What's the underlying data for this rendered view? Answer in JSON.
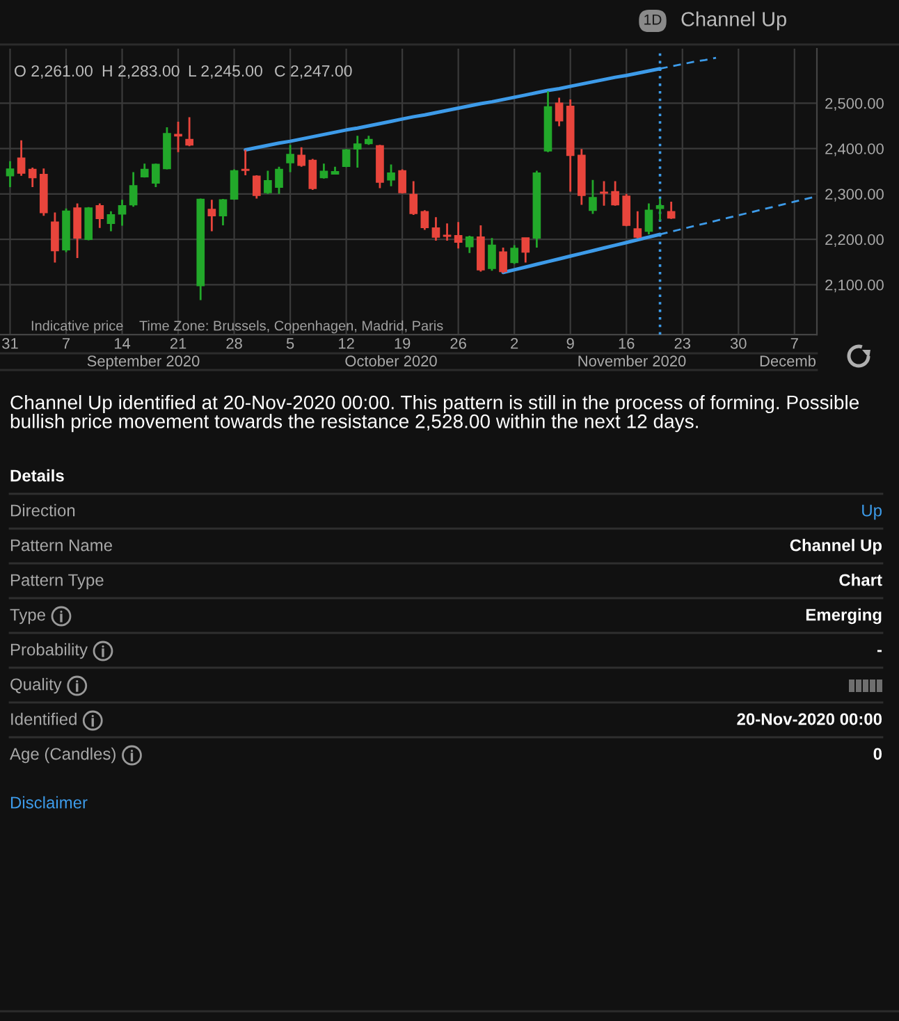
{
  "chart_data": {
    "type": "candlestick",
    "title": "Channel Up",
    "categories": [
      "31",
      null,
      null,
      null,
      null,
      "7",
      null,
      null,
      null,
      null,
      "14",
      null,
      null,
      null,
      null,
      "21",
      null,
      null,
      null,
      null,
      "28",
      null,
      null,
      null,
      null,
      "5",
      null,
      null,
      null,
      null,
      "12",
      null,
      null,
      null,
      null,
      "19",
      null,
      null,
      null,
      null,
      "26",
      null,
      null,
      null,
      null,
      "2",
      null,
      null,
      null,
      null,
      "9",
      null,
      null,
      null,
      null,
      "16",
      null,
      null,
      null,
      null,
      "23",
      null,
      null,
      null,
      null,
      "30",
      null,
      null,
      null,
      null,
      "7",
      null,
      null
    ],
    "ohlc": [
      [
        2340,
        2372,
        2315,
        2355
      ],
      [
        2379,
        2418,
        2340,
        2346
      ],
      [
        2354,
        2358,
        2315,
        2336
      ],
      [
        2343,
        2356,
        2252,
        2259
      ],
      [
        2238,
        2259,
        2149,
        2175
      ],
      [
        2177,
        2268,
        2172,
        2262
      ],
      [
        2269,
        2279,
        2159,
        2203
      ],
      [
        2200,
        2271,
        2198,
        2269
      ],
      [
        2274,
        2279,
        2225,
        2246
      ],
      [
        2235,
        2262,
        2218,
        2254
      ],
      [
        2256,
        2287,
        2230,
        2274
      ],
      [
        2276,
        2348,
        2272,
        2318
      ],
      [
        2338,
        2367,
        2336,
        2354
      ],
      [
        2324,
        2367,
        2315,
        2365
      ],
      [
        2356,
        2447,
        2354,
        2433
      ],
      [
        2431,
        2459,
        2392,
        2428
      ],
      [
        2420,
        2469,
        2405,
        2408
      ],
      [
        2098,
        2290,
        2066,
        2288
      ],
      [
        2266,
        2287,
        2218,
        2252
      ],
      [
        2252,
        2289,
        2231,
        2287
      ],
      [
        2289,
        2354,
        2287,
        2351
      ],
      [
        2354,
        2397,
        2341,
        2352
      ],
      [
        2339,
        2341,
        2290,
        2297
      ],
      [
        2303,
        2351,
        2300,
        2329
      ],
      [
        2315,
        2360,
        2300,
        2354
      ],
      [
        2369,
        2408,
        2348,
        2387
      ],
      [
        2385,
        2403,
        2360,
        2363
      ],
      [
        2374,
        2377,
        2309,
        2312
      ],
      [
        2336,
        2367,
        2334,
        2350
      ],
      [
        2344,
        2360,
        2343,
        2349
      ],
      [
        2361,
        2399,
        2359,
        2397
      ],
      [
        2399,
        2428,
        2358,
        2410
      ],
      [
        2411,
        2428,
        2408,
        2420
      ],
      [
        2406,
        2408,
        2313,
        2326
      ],
      [
        2331,
        2365,
        2317,
        2346
      ],
      [
        2351,
        2354,
        2301,
        2303
      ],
      [
        2299,
        2328,
        2254,
        2257
      ],
      [
        2261,
        2264,
        2221,
        2226
      ],
      [
        2225,
        2249,
        2197,
        2205
      ],
      [
        2209,
        2235,
        2197,
        2207
      ],
      [
        2208,
        2238,
        2180,
        2194
      ],
      [
        2184,
        2208,
        2170,
        2205
      ],
      [
        2205,
        2231,
        2129,
        2133
      ],
      [
        2136,
        2203,
        2131,
        2187
      ],
      [
        2172,
        2182,
        2126,
        2129
      ],
      [
        2149,
        2187,
        2146,
        2180
      ],
      [
        2203,
        2203,
        2149,
        2172
      ],
      [
        2203,
        2351,
        2182,
        2346
      ],
      [
        2395,
        2526,
        2392,
        2492
      ],
      [
        2500,
        2512,
        2449,
        2461
      ],
      [
        2493,
        2508,
        2305,
        2385
      ],
      [
        2385,
        2399,
        2276,
        2297
      ],
      [
        2264,
        2331,
        2256,
        2292
      ],
      [
        2304,
        2328,
        2274,
        2302
      ],
      [
        2305,
        2328,
        2274,
        2276
      ],
      [
        2295,
        2300,
        2229,
        2231
      ],
      [
        2223,
        2262,
        2202,
        2205
      ],
      [
        2218,
        2279,
        2211,
        2264
      ],
      [
        2268,
        2290,
        2241,
        2274
      ],
      [
        2261,
        2283,
        2245,
        2247
      ],
      null,
      null,
      null,
      null,
      null,
      null,
      null,
      null,
      null,
      null,
      null,
      null,
      null
    ],
    "colors": [
      "#22a82a",
      "#e8453c",
      "#e8453c",
      "#e8453c",
      "#e8453c",
      "#22a82a",
      "#e8453c",
      "#22a82a",
      "#e8453c",
      "#22a82a",
      "#22a82a",
      "#22a82a",
      "#22a82a",
      "#22a82a",
      "#22a82a",
      "#e8453c",
      "#e8453c",
      "#22a82a",
      "#e8453c",
      "#22a82a",
      "#22a82a",
      "#e8453c",
      "#e8453c",
      "#22a82a",
      "#22a82a",
      "#22a82a",
      "#e8453c",
      "#e8453c",
      "#22a82a",
      "#22a82a",
      "#22a82a",
      "#22a82a",
      "#22a82a",
      "#e8453c",
      "#22a82a",
      "#e8453c",
      "#e8453c",
      "#e8453c",
      "#e8453c",
      "#e8453c",
      "#e8453c",
      "#22a82a",
      "#e8453c",
      "#22a82a",
      "#e8453c",
      "#22a82a",
      "#e8453c",
      "#22a82a",
      "#22a82a",
      "#e8453c",
      "#e8453c",
      "#e8453c",
      "#22a82a",
      "#e8453c",
      "#e8453c",
      "#e8453c",
      "#e8453c",
      "#22a82a",
      "#22a82a",
      "#e8453c",
      null,
      null,
      null,
      null,
      null,
      null,
      null,
      null,
      null,
      null,
      null,
      null,
      null
    ],
    "series": [
      {
        "type": "line",
        "color": "#3d9be9",
        "line_style": "solid",
        "values": [
          null,
          null,
          null,
          null,
          null,
          null,
          null,
          null,
          null,
          null,
          null,
          null,
          null,
          null,
          null,
          null,
          null,
          null,
          null,
          null,
          null,
          2397,
          2402,
          2407,
          2412,
          2416,
          2421,
          2426,
          2431,
          2436,
          2441,
          2445,
          2450,
          2455,
          2460,
          2465,
          2470,
          2474,
          2479,
          2484,
          2489,
          2494,
          2499,
          2503,
          2508,
          2513,
          2518,
          2523,
          2528,
          2532,
          2537,
          2542,
          2547,
          2552,
          2557,
          2561,
          2566,
          2571,
          2576,
          null,
          null,
          null,
          null,
          null,
          null,
          null,
          null,
          null,
          null,
          null,
          null,
          null,
          null
        ]
      },
      {
        "type": "line",
        "color": "#3d9be9",
        "line_style": "dashed",
        "values": [
          null,
          null,
          null,
          null,
          null,
          null,
          null,
          null,
          null,
          null,
          null,
          null,
          null,
          null,
          null,
          null,
          null,
          null,
          null,
          null,
          null,
          null,
          null,
          null,
          null,
          null,
          null,
          null,
          null,
          null,
          null,
          null,
          null,
          null,
          null,
          null,
          null,
          null,
          null,
          null,
          null,
          null,
          null,
          null,
          null,
          null,
          null,
          null,
          null,
          null,
          null,
          null,
          null,
          null,
          null,
          null,
          null,
          null,
          2576,
          2581,
          2586,
          2591,
          2595,
          2600,
          null,
          null,
          null,
          null,
          null,
          null,
          null,
          null,
          null
        ]
      },
      {
        "type": "line",
        "color": "#3d9be9",
        "line_style": "solid",
        "values": [
          null,
          null,
          null,
          null,
          null,
          null,
          null,
          null,
          null,
          null,
          null,
          null,
          null,
          null,
          null,
          null,
          null,
          null,
          null,
          null,
          null,
          null,
          null,
          null,
          null,
          null,
          null,
          null,
          null,
          null,
          null,
          null,
          null,
          null,
          null,
          null,
          null,
          null,
          null,
          null,
          null,
          null,
          null,
          null,
          2127,
          2133,
          2139,
          2145,
          2151,
          2157,
          2163,
          2169,
          2175,
          2181,
          2187,
          2193,
          2199,
          2205,
          2211,
          null,
          null,
          null,
          null,
          null,
          null,
          null,
          null,
          null,
          null,
          null,
          null,
          null,
          null
        ]
      },
      {
        "type": "line",
        "color": "#3d9be9",
        "line_style": "dashed",
        "values": [
          null,
          null,
          null,
          null,
          null,
          null,
          null,
          null,
          null,
          null,
          null,
          null,
          null,
          null,
          null,
          null,
          null,
          null,
          null,
          null,
          null,
          null,
          null,
          null,
          null,
          null,
          null,
          null,
          null,
          null,
          null,
          null,
          null,
          null,
          null,
          null,
          null,
          null,
          null,
          null,
          null,
          null,
          null,
          null,
          null,
          null,
          null,
          null,
          null,
          null,
          null,
          null,
          null,
          null,
          null,
          null,
          null,
          null,
          2211,
          2217,
          2223,
          2229,
          2235,
          2241,
          2247,
          2253,
          2259,
          2265,
          2271,
          2277,
          2283,
          2289,
          2295
        ]
      }
    ],
    "ylim": [
      1990,
      2620
    ],
    "yticks": [
      {
        "value": 2100,
        "label": "2,100.00"
      },
      {
        "value": 2200,
        "label": "2,200.00"
      },
      {
        "value": 2300,
        "label": "2,300.00"
      },
      {
        "value": 2400,
        "label": "2,400.00"
      },
      {
        "value": 2500,
        "label": "2,500.00"
      }
    ],
    "grid": true,
    "annotations": [
      "O 2,261.00",
      "H 2,283.00",
      "L 2,245.00",
      "C 2,247.00",
      "Indicative price",
      "Time Zone: Brussels, Copenhagen, Madrid, Paris",
      "September 2020",
      "October 2020",
      "November 2020",
      "Decemb",
      "1D",
      "Channel Up identified at 20-Nov-2020 00:00. This pattern is still in the process of forming. Possible bullish price movement towards the resistance 2,528.00 within the next 12 days.",
      "Details",
      "Direction",
      "Up",
      "Pattern Name",
      "Channel Up",
      "Pattern Type",
      "Chart",
      "Type",
      "Emerging",
      "Probability",
      "-",
      "Quality",
      "Identified",
      "20-Nov-2020 00:00",
      "Age (Candles)",
      "0",
      "Disclaimer"
    ]
  }
}
